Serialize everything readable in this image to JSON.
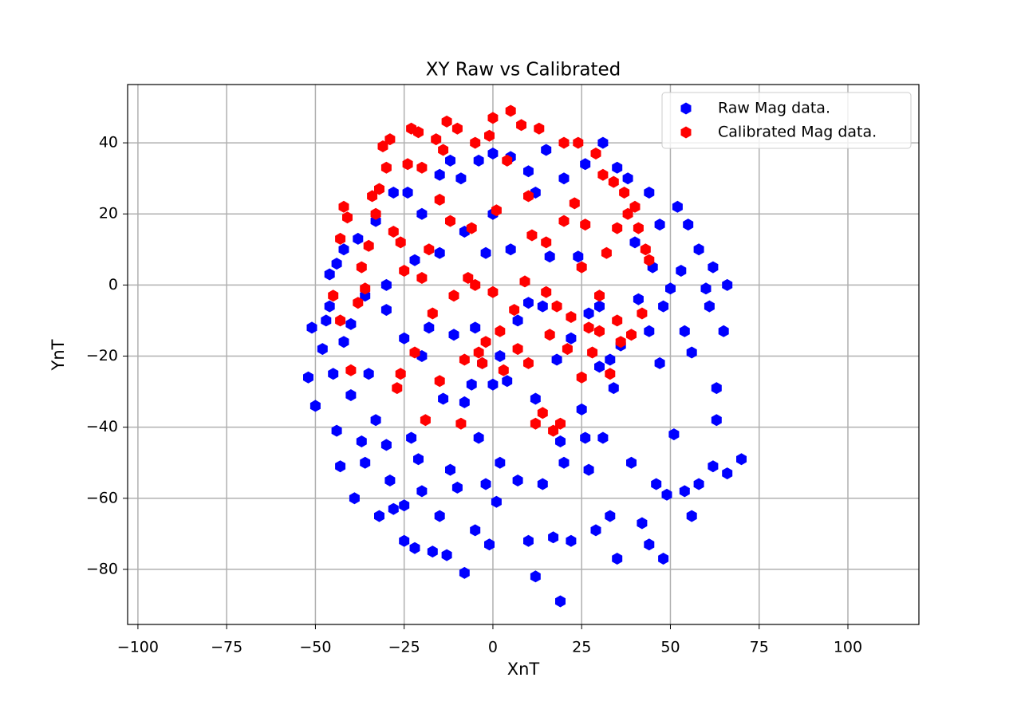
{
  "chart_data": {
    "type": "scatter",
    "title": "XY Raw vs Calibrated",
    "x_label": "XnT",
    "y_label": "YnT",
    "xlim": [
      -102.9,
      120
    ],
    "ylim": [
      -95.5,
      56.4
    ],
    "xticks": [
      {
        "value": -100,
        "label": "−100"
      },
      {
        "value": -75,
        "label": "−75"
      },
      {
        "value": -50,
        "label": "−50"
      },
      {
        "value": -25,
        "label": "−25"
      },
      0,
      25,
      50,
      75,
      100
    ],
    "yticks": [
      {
        "value": -80,
        "label": "−80"
      },
      {
        "value": -60,
        "label": "−60"
      },
      {
        "value": -40,
        "label": "−40"
      },
      {
        "value": -20,
        "label": "−20"
      },
      0,
      20,
      40
    ],
    "grid": true,
    "legend": "upper right",
    "series": [
      {
        "name": "Raw Mag data.",
        "color": "#0000ff",
        "x": [
          -52,
          -51,
          -50,
          -48,
          -47,
          -46,
          -45,
          -46,
          -44,
          -43,
          -42,
          -40,
          -40,
          -39,
          -37,
          -36,
          -35,
          -33,
          -32,
          -30,
          -29,
          -28,
          -25,
          -25,
          -23,
          -22,
          -21,
          -20,
          -17,
          -15,
          -13,
          -12,
          -10,
          -8,
          -5,
          -4,
          -2,
          -1,
          1,
          2,
          4,
          7,
          10,
          12,
          14,
          17,
          19,
          20,
          22,
          25,
          27,
          29,
          31,
          33,
          35,
          39,
          42,
          44,
          46,
          48,
          49,
          51,
          54,
          56,
          58,
          62,
          66,
          70,
          63,
          63,
          56,
          54,
          47,
          48,
          44,
          41,
          61,
          65,
          66,
          60,
          58,
          62,
          53,
          50,
          45,
          47,
          52,
          55,
          44,
          38,
          40,
          35,
          31,
          26,
          20,
          15,
          10,
          5,
          0,
          -4,
          -9,
          -12,
          -15,
          -20,
          -24,
          -28,
          -33,
          -38,
          -42,
          -44,
          -36,
          -30,
          -25,
          -20,
          -14,
          -8,
          -3,
          2,
          7,
          10,
          14,
          18,
          22,
          27,
          30,
          33,
          36,
          24,
          16,
          5,
          -2,
          -8,
          -15,
          -22,
          -30,
          -18,
          -11,
          -5,
          0,
          12,
          19,
          26,
          34,
          30,
          12,
          0,
          -6
        ],
        "values": [
          -26,
          -12,
          -34,
          -18,
          -10,
          -6,
          -25,
          3,
          -41,
          -51,
          -16,
          -11,
          -31,
          -60,
          -44,
          -50,
          -25,
          -38,
          -65,
          -45,
          -55,
          -63,
          -62,
          -72,
          -43,
          -74,
          -49,
          -58,
          -75,
          -65,
          -76,
          -52,
          -57,
          -81,
          -69,
          -43,
          -56,
          -73,
          -61,
          -50,
          -27,
          -55,
          -72,
          -82,
          -56,
          -71,
          -89,
          -50,
          -72,
          -35,
          -52,
          -69,
          -43,
          -65,
          -77,
          -50,
          -67,
          -73,
          -56,
          -77,
          -59,
          -42,
          -58,
          -65,
          -56,
          -51,
          -53,
          -49,
          -38,
          -29,
          -19,
          -13,
          -22,
          -6,
          -13,
          -4,
          -6,
          -13,
          0,
          -1,
          10,
          5,
          4,
          -1,
          5,
          17,
          22,
          17,
          26,
          30,
          12,
          33,
          40,
          34,
          30,
          38,
          32,
          36,
          37,
          35,
          30,
          35,
          31,
          20,
          26,
          26,
          18,
          13,
          10,
          6,
          -3,
          -7,
          -15,
          -20,
          -32,
          -33,
          -22,
          -20,
          -10,
          -5,
          -6,
          -21,
          -15,
          -8,
          -23,
          -21,
          -17,
          8,
          8,
          10,
          9,
          15,
          9,
          7,
          0,
          -12,
          -14,
          -12,
          -28,
          -32,
          -44,
          -43,
          -29,
          -6,
          26,
          20,
          -28
        ]
      },
      {
        "name": "Calibrated Mag data.",
        "color": "#ff0000",
        "x": [
          -45,
          -43,
          -43,
          -42,
          -41,
          -40,
          -38,
          -37,
          -36,
          -35,
          -34,
          -33,
          -32,
          -31,
          -30,
          -29,
          -28,
          -27,
          -26,
          -26,
          -25,
          -24,
          -23,
          -22,
          -21,
          -20,
          -19,
          -18,
          -17,
          -16,
          -15,
          -14,
          -13,
          -12,
          -11,
          -10,
          -9,
          -8,
          -7,
          -6,
          -5,
          -4,
          -3,
          -2,
          -1,
          0,
          1,
          2,
          3,
          4,
          5,
          6,
          7,
          8,
          9,
          10,
          11,
          12,
          13,
          14,
          15,
          16,
          17,
          18,
          19,
          20,
          21,
          22,
          23,
          24,
          25,
          26,
          27,
          28,
          29,
          30,
          31,
          32,
          33,
          34,
          35,
          36,
          37,
          38,
          39,
          40,
          41,
          42,
          43,
          44,
          -20,
          -15,
          -5,
          0,
          10,
          15,
          20,
          25,
          30,
          35
        ],
        "values": [
          -3,
          -10,
          13,
          22,
          19,
          -24,
          -5,
          5,
          -1,
          11,
          25,
          20,
          27,
          39,
          33,
          41,
          15,
          -29,
          -25,
          12,
          4,
          34,
          44,
          -19,
          43,
          33,
          -38,
          10,
          -8,
          41,
          -27,
          38,
          46,
          18,
          -3,
          44,
          -39,
          -21,
          2,
          16,
          40,
          -19,
          -22,
          -16,
          42,
          47,
          21,
          -13,
          -24,
          35,
          49,
          -7,
          -18,
          45,
          1,
          -22,
          14,
          -39,
          44,
          -36,
          12,
          -14,
          -41,
          -6,
          -39,
          40,
          -18,
          -9,
          23,
          40,
          -26,
          17,
          -12,
          -19,
          37,
          -13,
          31,
          9,
          -25,
          29,
          -10,
          -16,
          26,
          20,
          -14,
          22,
          16,
          -8,
          10,
          7,
          2,
          24,
          0,
          -2,
          25,
          -2,
          18,
          5,
          -3,
          16
        ]
      }
    ]
  }
}
